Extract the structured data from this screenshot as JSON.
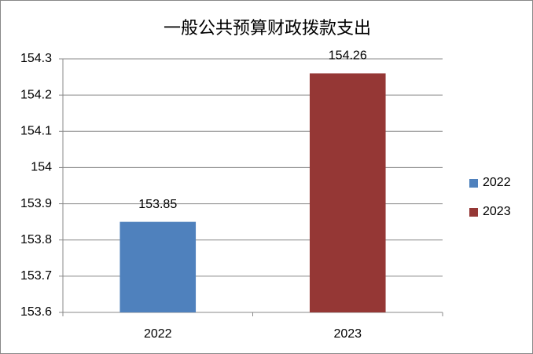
{
  "chart_data": {
    "type": "bar",
    "title": "一般公共预算财政拨款支出",
    "categories": [
      "2022",
      "2023"
    ],
    "series": [
      {
        "name": "2022",
        "color": "#4f81bd",
        "values": [
          153.85,
          null
        ]
      },
      {
        "name": "2023",
        "color": "#953735",
        "values": [
          null,
          154.26
        ]
      }
    ],
    "ylim": [
      153.6,
      154.3
    ],
    "yticks": [
      153.6,
      153.7,
      153.8,
      153.9,
      154,
      154.1,
      154.2,
      154.3
    ],
    "grid": true,
    "legend": "right"
  }
}
